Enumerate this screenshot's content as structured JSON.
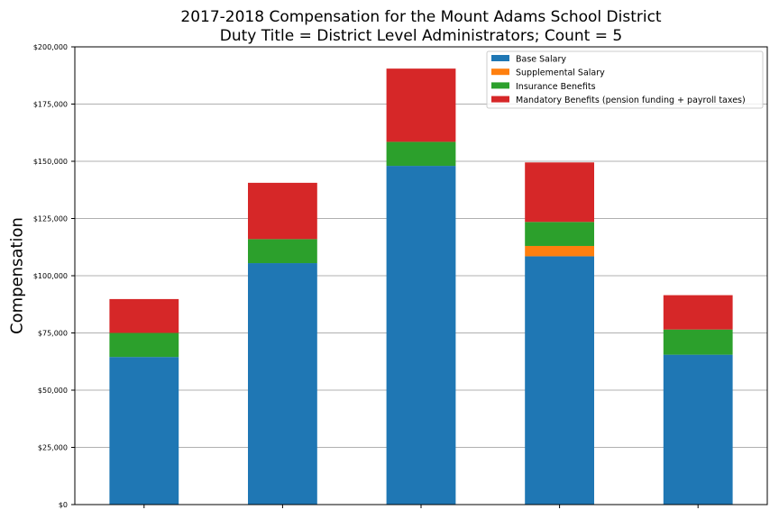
{
  "chart_data": {
    "type": "bar",
    "stacked": true,
    "title": "2017-2018 Compensation for the Mount Adams School District",
    "subtitle": "Duty Title = District Level Administrators; Count = 5",
    "xlabel": "",
    "ylabel": "Compensation",
    "categories": [
      "",
      "",
      "",
      "",
      ""
    ],
    "ylim": [
      0,
      200000
    ],
    "yticks": [
      0,
      25000,
      50000,
      75000,
      100000,
      125000,
      150000,
      175000,
      200000
    ],
    "ytick_labels": [
      "$0",
      "$25,000",
      "$50,000",
      "$75,000",
      "$100,000",
      "$125,000",
      "$150,000",
      "$175,000",
      "$200,000"
    ],
    "grid": "horizontal",
    "legend_position": "top-right",
    "series": [
      {
        "name": "Base Salary",
        "color": "#1f77b4",
        "values": [
          64500,
          105500,
          148000,
          108500,
          65500
        ]
      },
      {
        "name": "Supplemental Salary",
        "color": "#ff7f0e",
        "values": [
          0,
          0,
          0,
          4500,
          0
        ]
      },
      {
        "name": "Insurance Benefits",
        "color": "#2ca02c",
        "values": [
          10500,
          10500,
          10500,
          10500,
          11000
        ]
      },
      {
        "name": "Mandatory Benefits (pension funding + payroll taxes)",
        "color": "#d62728",
        "values": [
          14800,
          24600,
          32000,
          26000,
          15000
        ]
      }
    ]
  }
}
